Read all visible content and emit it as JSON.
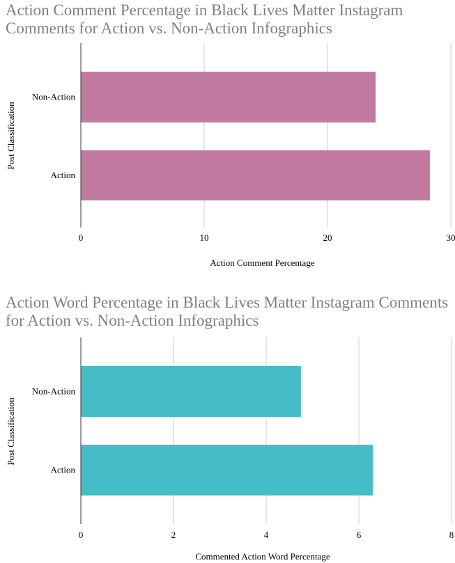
{
  "chart_data": [
    {
      "type": "bar",
      "orientation": "horizontal",
      "title": "Action Comment Percentage in Black Lives Matter Instagram Comments for Action vs. Non-Action Infographics",
      "xlabel": "Action Comment Percentage",
      "ylabel": "Post Classification",
      "categories": [
        "Non-Action",
        "Action"
      ],
      "values": [
        23.9,
        28.3
      ],
      "xlim": [
        0,
        30
      ],
      "xticks": [
        "0",
        "10",
        "20",
        "30"
      ],
      "bar_color": "#c27ba0",
      "grid": true
    },
    {
      "type": "bar",
      "orientation": "horizontal",
      "title": "Action Word Percentage in Black Lives Matter Instagram Comments for Action vs. Non-Action Infographics",
      "xlabel": "Commented Action Word Percentage",
      "ylabel": "Post Classification",
      "categories": [
        "Non-Action",
        "Action"
      ],
      "values": [
        4.75,
        6.3
      ],
      "xlim": [
        0,
        8
      ],
      "xticks": [
        "0",
        "2",
        "4",
        "6",
        "8"
      ],
      "bar_color": "#46bdc6",
      "grid": true
    }
  ],
  "colors": {
    "title": "#7f7f7f",
    "grid": "#cccccc",
    "axis": "#333333"
  }
}
